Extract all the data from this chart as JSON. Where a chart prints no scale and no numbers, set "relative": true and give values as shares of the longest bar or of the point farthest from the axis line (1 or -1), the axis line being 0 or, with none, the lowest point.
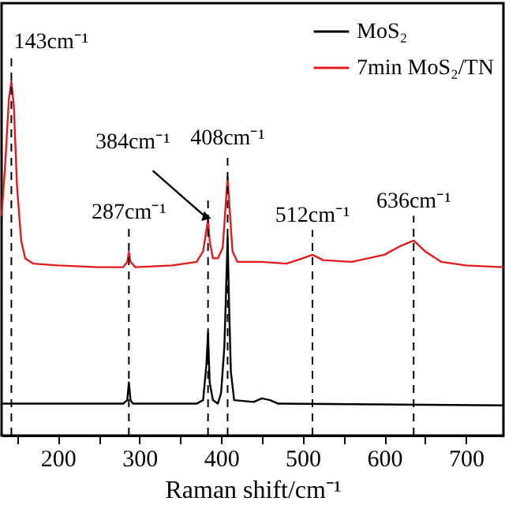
{
  "chart_data": {
    "type": "line",
    "relative": true,
    "xlabel": "Raman shift/cm⁻¹",
    "xlim": [
      131,
      746
    ],
    "xticks": [
      {
        "value": 150,
        "label": null
      },
      200,
      {
        "value": 250,
        "label": null
      },
      300,
      {
        "value": 350,
        "label": null
      },
      400,
      {
        "value": 450,
        "label": null
      },
      500,
      {
        "value": 550,
        "label": null
      },
      600,
      {
        "value": 650,
        "label": null
      },
      700
    ],
    "series": [
      {
        "name": "MoS₂",
        "color": "#000000",
        "x": [
          131,
          200,
          280,
          285,
          287,
          289,
          292,
          370,
          378,
          382,
          384,
          386,
          390,
          396,
          400,
          404,
          406,
          408,
          410,
          412,
          416,
          440,
          450,
          460,
          470,
          746
        ],
        "values": [
          0.09,
          0.09,
          0.09,
          0.1,
          0.15,
          0.1,
          0.09,
          0.09,
          0.1,
          0.2,
          0.29,
          0.15,
          0.1,
          0.09,
          0.12,
          0.25,
          0.4,
          0.56,
          0.35,
          0.18,
          0.1,
          0.095,
          0.105,
          0.1,
          0.09,
          0.085
        ]
      },
      {
        "name": "7min MoS₂/TN",
        "color": "#e31a1c",
        "x": [
          131,
          135,
          140,
          143,
          146,
          150,
          155,
          160,
          170,
          200,
          250,
          280,
          285,
          287,
          289,
          295,
          340,
          370,
          378,
          382,
          384,
          386,
          390,
          396,
          402,
          405,
          408,
          411,
          414,
          420,
          450,
          480,
          500,
          512,
          525,
          560,
          600,
          620,
          636,
          650,
          670,
          700,
          746
        ],
        "values": [
          0.62,
          0.75,
          0.95,
          1.0,
          0.93,
          0.7,
          0.55,
          0.5,
          0.485,
          0.48,
          0.475,
          0.475,
          0.49,
          0.518,
          0.49,
          0.475,
          0.48,
          0.49,
          0.52,
          0.58,
          0.607,
          0.55,
          0.5,
          0.5,
          0.53,
          0.63,
          0.729,
          0.62,
          0.52,
          0.49,
          0.49,
          0.485,
          0.5,
          0.51,
          0.495,
          0.49,
          0.51,
          0.535,
          0.55,
          0.52,
          0.49,
          0.48,
          0.475
        ]
      }
    ],
    "annotations": [
      {
        "text": "143cm⁻¹",
        "x": 143,
        "y": 1.0
      },
      {
        "text": "287cm⁻¹",
        "x": 287,
        "y": 0.518
      },
      {
        "text": "384cm⁻¹",
        "x": 384,
        "y": 0.607
      },
      {
        "text": "408cm⁻¹",
        "x": 408,
        "y": 0.729
      },
      {
        "text": "512cm⁻¹",
        "x": 512,
        "y": 0.51
      },
      {
        "text": "636cm⁻¹",
        "x": 636,
        "y": 0.55
      }
    ],
    "ref_lines": [
      {
        "axis": "x",
        "value": 143,
        "color": "#000000",
        "line_style": "dashed"
      },
      {
        "axis": "x",
        "value": 287,
        "color": "#000000",
        "line_style": "dashed"
      },
      {
        "axis": "x",
        "value": 384,
        "color": "#000000",
        "line_style": "dashed"
      },
      {
        "axis": "x",
        "value": 408,
        "color": "#000000",
        "line_style": "dashed"
      },
      {
        "axis": "x",
        "value": 512,
        "color": "#000000",
        "line_style": "dashed"
      },
      {
        "axis": "x",
        "value": 636,
        "color": "#000000",
        "line_style": "dashed"
      }
    ],
    "legend": "top right",
    "grid": false,
    "marker": "none",
    "line_style": "solid"
  }
}
